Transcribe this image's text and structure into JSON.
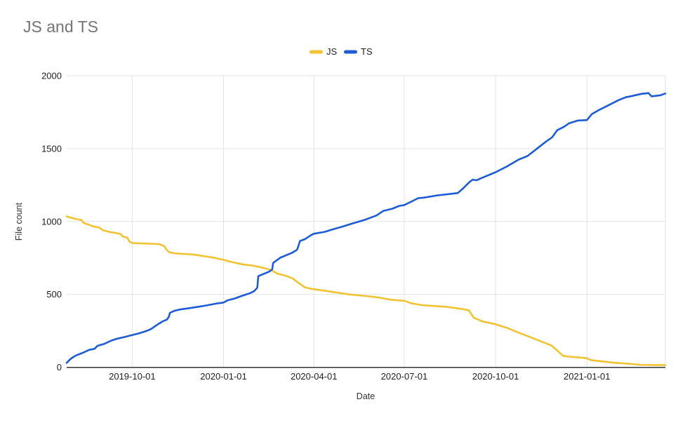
{
  "window": {
    "background": "#ffffff"
  },
  "colors": {
    "title_text": "#757575",
    "tick_label_text": "#1f1f1f",
    "axis_title_text": "#333333",
    "gridline": "#e3e3e3",
    "axis_line": "#333333",
    "js_series": "#f1c232",
    "ts_series": "#1e5cd6"
  },
  "chart_data": {
    "type": "line",
    "title": "JS and TS",
    "xlabel": "Date",
    "ylabel": "File count",
    "legend_position": "top-center",
    "grid": true,
    "x_type": "date",
    "ylim": [
      0,
      2000
    ],
    "yticks": [
      0,
      500,
      1000,
      1500,
      2000
    ],
    "ytick_labels": [
      "0",
      "500",
      "1000",
      "1500",
      "2000"
    ],
    "xlim": [
      "2019-07-27",
      "2021-03-21"
    ],
    "xticks": [
      "2019-10-01",
      "2020-01-01",
      "2020-04-01",
      "2020-07-01",
      "2020-10-01",
      "2021-01-01"
    ],
    "series": [
      {
        "name": "JS",
        "color": "#f1c232",
        "points": [
          [
            "2019-07-27",
            1035
          ],
          [
            "2019-07-31",
            1026
          ],
          [
            "2019-08-05",
            1018
          ],
          [
            "2019-08-11",
            1010
          ],
          [
            "2019-08-13",
            991
          ],
          [
            "2019-08-19",
            976
          ],
          [
            "2019-08-23",
            966
          ],
          [
            "2019-08-29",
            958
          ],
          [
            "2019-09-01",
            941
          ],
          [
            "2019-09-07",
            930
          ],
          [
            "2019-09-14",
            922
          ],
          [
            "2019-09-19",
            915
          ],
          [
            "2019-09-22",
            896
          ],
          [
            "2019-09-26",
            889
          ],
          [
            "2019-09-28",
            864
          ],
          [
            "2019-10-01",
            852
          ],
          [
            "2019-10-10",
            850
          ],
          [
            "2019-10-20",
            847
          ],
          [
            "2019-10-28",
            845
          ],
          [
            "2019-11-02",
            833
          ],
          [
            "2019-11-04",
            812
          ],
          [
            "2019-11-07",
            790
          ],
          [
            "2019-11-12",
            782
          ],
          [
            "2019-11-20",
            778
          ],
          [
            "2019-11-29",
            775
          ],
          [
            "2019-12-10",
            765
          ],
          [
            "2019-12-22",
            752
          ],
          [
            "2020-01-01",
            737
          ],
          [
            "2020-01-08",
            724
          ],
          [
            "2020-01-20",
            706
          ],
          [
            "2020-01-30",
            698
          ],
          [
            "2020-02-10",
            682
          ],
          [
            "2020-02-18",
            666
          ],
          [
            "2020-02-24",
            643
          ],
          [
            "2020-03-04",
            627
          ],
          [
            "2020-03-11",
            608
          ],
          [
            "2020-03-16",
            581
          ],
          [
            "2020-03-23",
            548
          ],
          [
            "2020-03-31",
            536
          ],
          [
            "2020-04-14",
            523
          ],
          [
            "2020-05-06",
            500
          ],
          [
            "2020-05-20",
            491
          ],
          [
            "2020-06-02",
            482
          ],
          [
            "2020-06-18",
            463
          ],
          [
            "2020-07-01",
            456
          ],
          [
            "2020-07-08",
            439
          ],
          [
            "2020-07-19",
            426
          ],
          [
            "2020-08-12",
            415
          ],
          [
            "2020-08-28",
            400
          ],
          [
            "2020-09-04",
            391
          ],
          [
            "2020-09-09",
            340
          ],
          [
            "2020-09-18",
            314
          ],
          [
            "2020-10-01",
            295
          ],
          [
            "2020-10-12",
            271
          ],
          [
            "2020-10-23",
            241
          ],
          [
            "2020-11-01",
            217
          ],
          [
            "2020-11-10",
            193
          ],
          [
            "2020-11-19",
            169
          ],
          [
            "2020-11-26",
            150
          ],
          [
            "2020-12-01",
            122
          ],
          [
            "2020-12-08",
            78
          ],
          [
            "2020-12-15",
            72
          ],
          [
            "2020-12-31",
            63
          ],
          [
            "2021-01-05",
            49
          ],
          [
            "2021-01-18",
            39
          ],
          [
            "2021-01-30",
            30
          ],
          [
            "2021-02-10",
            25
          ],
          [
            "2021-02-24",
            17
          ],
          [
            "2021-03-21",
            14
          ]
        ]
      },
      {
        "name": "TS",
        "color": "#1e5cd6",
        "points": [
          [
            "2019-07-27",
            30
          ],
          [
            "2019-07-31",
            58
          ],
          [
            "2019-08-05",
            80
          ],
          [
            "2019-08-13",
            101
          ],
          [
            "2019-08-19",
            120
          ],
          [
            "2019-08-24",
            126
          ],
          [
            "2019-08-27",
            147
          ],
          [
            "2019-09-03",
            161
          ],
          [
            "2019-09-10",
            183
          ],
          [
            "2019-09-16",
            196
          ],
          [
            "2019-09-23",
            207
          ],
          [
            "2019-10-01",
            221
          ],
          [
            "2019-10-08",
            233
          ],
          [
            "2019-10-15",
            248
          ],
          [
            "2019-10-20",
            262
          ],
          [
            "2019-10-24",
            281
          ],
          [
            "2019-10-28",
            300
          ],
          [
            "2019-11-01",
            316
          ],
          [
            "2019-11-05",
            327
          ],
          [
            "2019-11-07",
            347
          ],
          [
            "2019-11-08",
            373
          ],
          [
            "2019-11-12",
            386
          ],
          [
            "2019-11-18",
            396
          ],
          [
            "2019-11-25",
            403
          ],
          [
            "2019-12-05",
            413
          ],
          [
            "2019-12-15",
            424
          ],
          [
            "2019-12-24",
            436
          ],
          [
            "2020-01-01",
            444
          ],
          [
            "2020-01-05",
            459
          ],
          [
            "2020-01-12",
            471
          ],
          [
            "2020-01-20",
            491
          ],
          [
            "2020-01-28",
            509
          ],
          [
            "2020-02-01",
            523
          ],
          [
            "2020-02-04",
            546
          ],
          [
            "2020-02-05",
            625
          ],
          [
            "2020-02-10",
            639
          ],
          [
            "2020-02-16",
            656
          ],
          [
            "2020-02-19",
            671
          ],
          [
            "2020-02-20",
            716
          ],
          [
            "2020-02-27",
            751
          ],
          [
            "2020-03-05",
            771
          ],
          [
            "2020-03-10",
            785
          ],
          [
            "2020-03-15",
            806
          ],
          [
            "2020-03-16",
            823
          ],
          [
            "2020-03-18",
            866
          ],
          [
            "2020-03-23",
            879
          ],
          [
            "2020-03-29",
            906
          ],
          [
            "2020-04-01",
            916
          ],
          [
            "2020-04-12",
            929
          ],
          [
            "2020-04-19",
            944
          ],
          [
            "2020-04-29",
            963
          ],
          [
            "2020-05-10",
            987
          ],
          [
            "2020-05-22",
            1011
          ],
          [
            "2020-06-03",
            1041
          ],
          [
            "2020-06-10",
            1073
          ],
          [
            "2020-06-19",
            1088
          ],
          [
            "2020-06-26",
            1107
          ],
          [
            "2020-07-01",
            1113
          ],
          [
            "2020-07-08",
            1136
          ],
          [
            "2020-07-15",
            1160
          ],
          [
            "2020-07-21",
            1164
          ],
          [
            "2020-08-03",
            1179
          ],
          [
            "2020-08-10",
            1184
          ],
          [
            "2020-08-24",
            1195
          ],
          [
            "2020-08-30",
            1232
          ],
          [
            "2020-09-05",
            1272
          ],
          [
            "2020-09-08",
            1287
          ],
          [
            "2020-09-12",
            1283
          ],
          [
            "2020-09-16",
            1296
          ],
          [
            "2020-09-19",
            1304
          ],
          [
            "2020-10-01",
            1338
          ],
          [
            "2020-10-12",
            1376
          ],
          [
            "2020-10-24",
            1424
          ],
          [
            "2020-11-02",
            1449
          ],
          [
            "2020-11-11",
            1496
          ],
          [
            "2020-11-20",
            1544
          ],
          [
            "2020-11-27",
            1578
          ],
          [
            "2020-12-02",
            1626
          ],
          [
            "2020-12-09",
            1650
          ],
          [
            "2020-12-14",
            1674
          ],
          [
            "2020-12-23",
            1693
          ],
          [
            "2021-01-01",
            1696
          ],
          [
            "2021-01-06",
            1737
          ],
          [
            "2021-01-12",
            1761
          ],
          [
            "2021-01-19",
            1785
          ],
          [
            "2021-01-26",
            1809
          ],
          [
            "2021-02-02",
            1833
          ],
          [
            "2021-02-09",
            1852
          ],
          [
            "2021-02-16",
            1862
          ],
          [
            "2021-02-25",
            1876
          ],
          [
            "2021-03-04",
            1881
          ],
          [
            "2021-03-07",
            1859
          ],
          [
            "2021-03-11",
            1862
          ],
          [
            "2021-03-16",
            1866
          ],
          [
            "2021-03-21",
            1878
          ]
        ]
      }
    ]
  }
}
